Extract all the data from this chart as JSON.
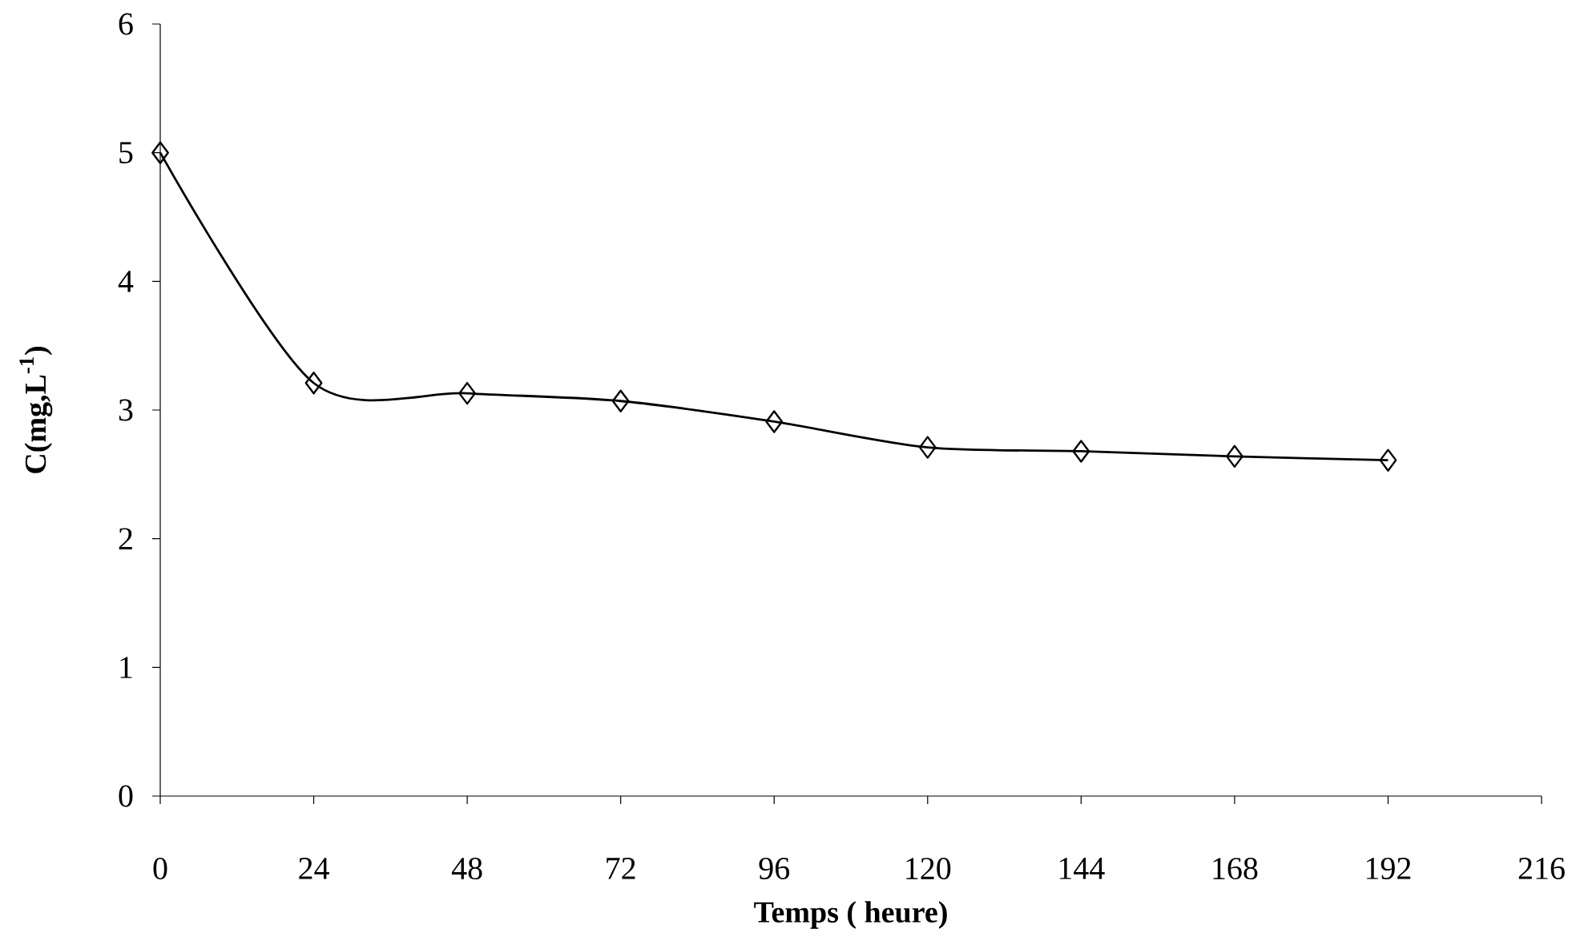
{
  "chart_data": {
    "type": "line",
    "xlabel": "Temps ( heure)",
    "ylabel": "C(mg,L$^{-1}$)",
    "x": [
      0,
      24,
      48,
      72,
      96,
      120,
      144,
      168,
      192
    ],
    "series": [
      {
        "color": "#000000",
        "values": [
          5.0,
          3.21,
          3.13,
          3.07,
          2.91,
          2.71,
          2.68,
          2.64,
          2.61
        ]
      }
    ],
    "xlim": [
      0,
      216
    ],
    "xticks": [
      0,
      24,
      48,
      72,
      96,
      120,
      144,
      168,
      192,
      216
    ],
    "ylim": [
      0,
      6
    ],
    "yticks": [
      0,
      1,
      2,
      3,
      4,
      5,
      6
    ],
    "marker": "diamond",
    "line_style": "solid",
    "grid": false
  }
}
